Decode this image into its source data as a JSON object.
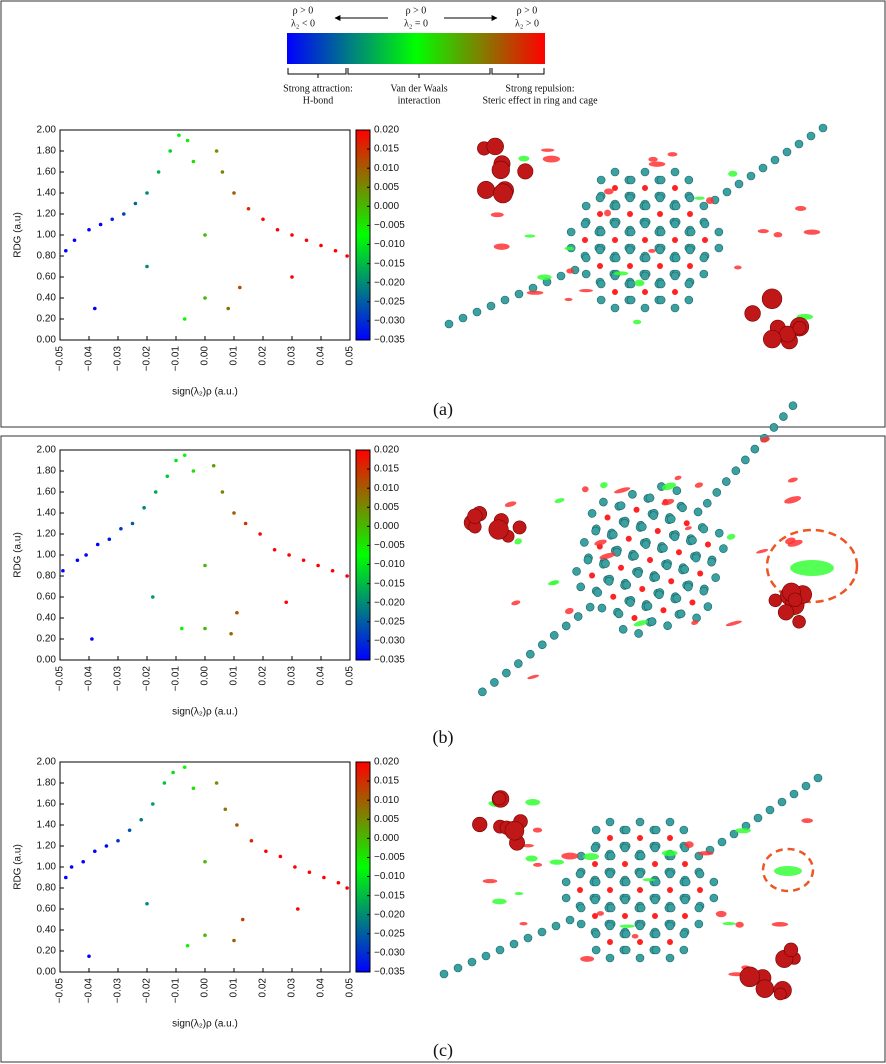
{
  "legend": {
    "labels": [
      [
        "ρ > 0",
        "λ₂ < 0"
      ],
      [
        "ρ > 0",
        "λ₂ = 0"
      ],
      [
        "ρ > 0",
        "λ₂ > 0"
      ]
    ],
    "colors": [
      "#0000ff",
      "#00ff00",
      "#ff0000"
    ],
    "regions": [
      [
        "Strong attraction:",
        "H-bond"
      ],
      [
        "Van der Waals",
        "interaction"
      ],
      [
        "Strong repulsion:",
        "Steric effect in ring and cage"
      ]
    ]
  },
  "panel_labels": [
    "(a)",
    "(b)",
    "(c)"
  ],
  "chart_data": [
    {
      "type": "scatter",
      "xlabel": "sign(λ₂)ρ (a.u.)",
      "ylabel": "RDG (a.u)",
      "x": [
        -0.048,
        -0.045,
        -0.04,
        -0.036,
        -0.032,
        -0.028,
        -0.024,
        -0.02,
        -0.016,
        -0.012,
        -0.009,
        -0.006,
        -0.004,
        0.0,
        0.0,
        0.004,
        0.006,
        0.01,
        0.015,
        0.02,
        0.025,
        0.03,
        0.035,
        0.04,
        0.045,
        0.049,
        -0.038,
        -0.02,
        0.012,
        0.03,
        -0.007,
        0.008
      ],
      "y": [
        0.85,
        0.95,
        1.05,
        1.1,
        1.15,
        1.2,
        1.3,
        1.4,
        1.6,
        1.8,
        1.95,
        1.9,
        1.7,
        1.0,
        0.4,
        1.8,
        1.6,
        1.4,
        1.25,
        1.15,
        1.05,
        1.0,
        0.95,
        0.9,
        0.85,
        0.8,
        0.3,
        0.7,
        0.5,
        0.6,
        0.2,
        0.3
      ],
      "xlim": [
        -0.05,
        0.05
      ],
      "ylim": [
        0,
        2
      ],
      "xticks": [
        {
          "value": -0.05,
          "label": "−0.05"
        },
        {
          "value": -0.04,
          "label": "−0.04"
        },
        {
          "value": -0.03,
          "label": "−0.03"
        },
        {
          "value": -0.02,
          "label": "−0.02"
        },
        {
          "value": -0.01,
          "label": "−0.01"
        },
        {
          "value": 0,
          "label": "0.00"
        },
        0.01,
        0.02,
        0.03,
        0.04,
        0.05
      ],
      "yticks": [
        {
          "value": 0,
          "label": "0.00"
        },
        {
          "value": 0.2,
          "label": "0.20"
        },
        {
          "value": 0.4,
          "label": "0.40"
        },
        {
          "value": 0.6,
          "label": "0.60"
        },
        {
          "value": 0.8,
          "label": "0.80"
        },
        {
          "value": 1,
          "label": "1.00"
        },
        {
          "value": 1.2,
          "label": "1.20"
        },
        {
          "value": 1.4,
          "label": "1.40"
        },
        {
          "value": 1.6,
          "label": "1.60"
        },
        {
          "value": 1.8,
          "label": "1.80"
        },
        {
          "value": 2,
          "label": "2.00"
        }
      ],
      "colormap": [
        "#0000ff",
        "#00ff00",
        "#ff0000"
      ],
      "clim": [
        -0.035,
        0.02
      ],
      "cticks": [
        {
          "value": 0.02,
          "label": "0.020"
        },
        0.015,
        {
          "value": 0.01,
          "label": "0.010"
        },
        0.005,
        {
          "value": 0,
          "label": "0.000"
        },
        {
          "value": -0.005,
          "label": "−0.005"
        },
        {
          "value": -0.01,
          "label": "−0.010"
        },
        {
          "value": -0.015,
          "label": "−0.015"
        },
        {
          "value": -0.02,
          "label": "−0.020"
        },
        {
          "value": -0.025,
          "label": "−0.025"
        },
        {
          "value": -0.03,
          "label": "−0.030"
        },
        {
          "value": -0.035,
          "label": "−0.035"
        }
      ]
    },
    {
      "type": "scatter",
      "xlabel": "sign(λ₂)ρ (a.u.)",
      "ylabel": "RDG (a.u)",
      "x": [
        -0.049,
        -0.044,
        -0.041,
        -0.037,
        -0.033,
        -0.029,
        -0.025,
        -0.021,
        -0.017,
        -0.013,
        -0.01,
        -0.007,
        -0.004,
        0.0,
        0.0,
        0.003,
        0.006,
        0.01,
        0.014,
        0.019,
        0.024,
        0.029,
        0.034,
        0.039,
        0.044,
        0.049,
        -0.039,
        -0.018,
        0.011,
        0.028,
        -0.008,
        0.009
      ],
      "y": [
        0.85,
        0.95,
        1.0,
        1.1,
        1.15,
        1.25,
        1.3,
        1.45,
        1.6,
        1.75,
        1.9,
        1.95,
        1.8,
        0.9,
        0.3,
        1.85,
        1.6,
        1.4,
        1.3,
        1.2,
        1.05,
        1.0,
        0.95,
        0.9,
        0.85,
        0.8,
        0.2,
        0.6,
        0.45,
        0.55,
        0.3,
        0.25
      ],
      "xlim": [
        -0.05,
        0.05
      ],
      "ylim": [
        0,
        2
      ],
      "xticks": [
        {
          "value": -0.05,
          "label": "−0.05"
        },
        {
          "value": -0.04,
          "label": "−0.04"
        },
        {
          "value": -0.03,
          "label": "−0.03"
        },
        {
          "value": -0.02,
          "label": "−0.02"
        },
        {
          "value": -0.01,
          "label": "−0.01"
        },
        {
          "value": 0,
          "label": "0.00"
        },
        0.01,
        0.02,
        0.03,
        0.04,
        0.05
      ],
      "yticks": [
        {
          "value": 0,
          "label": "0.00"
        },
        {
          "value": 0.2,
          "label": "0.20"
        },
        {
          "value": 0.4,
          "label": "0.40"
        },
        {
          "value": 0.6,
          "label": "0.60"
        },
        {
          "value": 0.8,
          "label": "0.80"
        },
        {
          "value": 1,
          "label": "1.00"
        },
        {
          "value": 1.2,
          "label": "1.20"
        },
        {
          "value": 1.4,
          "label": "1.40"
        },
        {
          "value": 1.6,
          "label": "1.60"
        },
        {
          "value": 1.8,
          "label": "1.80"
        },
        {
          "value": 2,
          "label": "2.00"
        }
      ],
      "colormap": [
        "#0000ff",
        "#00ff00",
        "#ff0000"
      ],
      "clim": [
        -0.035,
        0.02
      ],
      "cticks": [
        {
          "value": 0.02,
          "label": "0.020"
        },
        0.015,
        {
          "value": 0.01,
          "label": "0.010"
        },
        0.005,
        {
          "value": 0,
          "label": "0.000"
        },
        {
          "value": -0.005,
          "label": "−0.005"
        },
        {
          "value": -0.01,
          "label": "−0.010"
        },
        {
          "value": -0.015,
          "label": "−0.015"
        },
        {
          "value": -0.02,
          "label": "−0.020"
        },
        {
          "value": -0.025,
          "label": "−0.025"
        },
        {
          "value": -0.03,
          "label": "−0.030"
        },
        {
          "value": -0.035,
          "label": "−0.035"
        }
      ]
    },
    {
      "type": "scatter",
      "xlabel": "sign(λ₂)ρ (a.u.)",
      "ylabel": "RDG (a.u)",
      "x": [
        -0.048,
        -0.046,
        -0.042,
        -0.038,
        -0.034,
        -0.03,
        -0.026,
        -0.022,
        -0.018,
        -0.014,
        -0.011,
        -0.007,
        -0.004,
        0.0,
        0.0,
        0.004,
        0.007,
        0.011,
        0.016,
        0.021,
        0.026,
        0.031,
        0.036,
        0.041,
        0.046,
        0.049,
        -0.04,
        -0.02,
        0.013,
        0.032,
        -0.006,
        0.01
      ],
      "y": [
        0.9,
        1.0,
        1.05,
        1.15,
        1.2,
        1.25,
        1.35,
        1.45,
        1.6,
        1.8,
        1.9,
        1.95,
        1.75,
        1.05,
        0.35,
        1.8,
        1.55,
        1.4,
        1.25,
        1.15,
        1.1,
        1.0,
        0.95,
        0.9,
        0.85,
        0.8,
        0.15,
        0.65,
        0.5,
        0.6,
        0.25,
        0.3
      ],
      "xlim": [
        -0.05,
        0.05
      ],
      "ylim": [
        0,
        2
      ],
      "xticks": [
        {
          "value": -0.05,
          "label": "−0.05"
        },
        {
          "value": -0.04,
          "label": "−0.04"
        },
        {
          "value": -0.03,
          "label": "−0.03"
        },
        {
          "value": -0.02,
          "label": "−0.02"
        },
        {
          "value": -0.01,
          "label": "−0.01"
        },
        {
          "value": 0,
          "label": "0.00"
        },
        0.01,
        0.02,
        0.03,
        0.04,
        0.05
      ],
      "yticks": [
        {
          "value": 0,
          "label": "0.00"
        },
        {
          "value": 0.2,
          "label": "0.20"
        },
        {
          "value": 0.4,
          "label": "0.40"
        },
        {
          "value": 0.6,
          "label": "0.60"
        },
        {
          "value": 0.8,
          "label": "0.80"
        },
        {
          "value": 1,
          "label": "1.00"
        },
        {
          "value": 1.2,
          "label": "1.20"
        },
        {
          "value": 1.4,
          "label": "1.40"
        },
        {
          "value": 1.6,
          "label": "1.60"
        },
        {
          "value": 1.8,
          "label": "1.80"
        },
        {
          "value": 2,
          "label": "2.00"
        }
      ],
      "colormap": [
        "#0000ff",
        "#00ff00",
        "#ff0000"
      ],
      "clim": [
        -0.035,
        0.02
      ],
      "cticks": [
        {
          "value": 0.02,
          "label": "0.020"
        },
        0.015,
        {
          "value": 0.01,
          "label": "0.010"
        },
        0.005,
        {
          "value": 0,
          "label": "0.000"
        },
        {
          "value": -0.005,
          "label": "−0.005"
        },
        {
          "value": -0.01,
          "label": "−0.010"
        },
        {
          "value": -0.015,
          "label": "−0.015"
        },
        {
          "value": -0.02,
          "label": "−0.020"
        },
        {
          "value": -0.025,
          "label": "−0.025"
        },
        {
          "value": -0.03,
          "label": "−0.030"
        },
        {
          "value": -0.035,
          "label": "−0.035"
        }
      ]
    }
  ]
}
